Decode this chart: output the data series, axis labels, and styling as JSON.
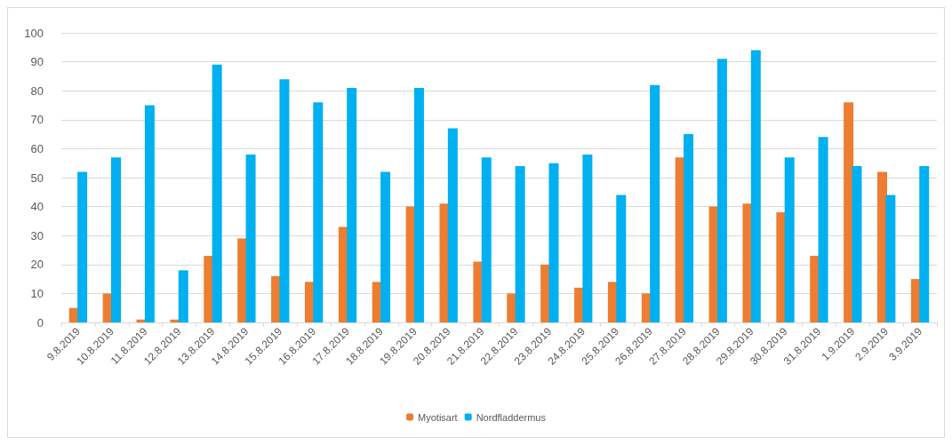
{
  "chart_data": {
    "type": "bar",
    "categories": [
      "9.8.2019",
      "10.8.2019",
      "11.8.2019",
      "12.8.2019",
      "13.8.2019",
      "14.8.2019",
      "15.8.2019",
      "16.8.2019",
      "17.8.2019",
      "18.8.2019",
      "19.8.2019",
      "20.8.2019",
      "21.8.2019",
      "22.8.2019",
      "23.8.2019",
      "24.8.2019",
      "25.8.2019",
      "26.8.2019",
      "27.8.2019",
      "28.8.2019",
      "29.8.2019",
      "30.8.2019",
      "31.8.2019",
      "1.9.2019",
      "2.9.2019",
      "3.9.2019"
    ],
    "series": [
      {
        "name": "Myotisart",
        "color": "#ed7d31",
        "values": [
          5,
          10,
          1,
          1,
          23,
          29,
          16,
          14,
          33,
          14,
          40,
          41,
          21,
          10,
          20,
          12,
          14,
          10,
          57,
          40,
          41,
          38,
          23,
          76,
          52,
          15
        ]
      },
      {
        "name": "Nordfladdermus",
        "color": "#00b0f0",
        "values": [
          52,
          57,
          75,
          18,
          89,
          58,
          84,
          76,
          81,
          52,
          81,
          67,
          57,
          54,
          55,
          58,
          44,
          82,
          65,
          91,
          94,
          57,
          64,
          54,
          44,
          54
        ]
      }
    ],
    "ylim": [
      0,
      100
    ],
    "yticks": [
      0,
      10,
      20,
      30,
      40,
      50,
      60,
      70,
      80,
      90,
      100
    ],
    "grid": "y",
    "legend": "bottom"
  }
}
